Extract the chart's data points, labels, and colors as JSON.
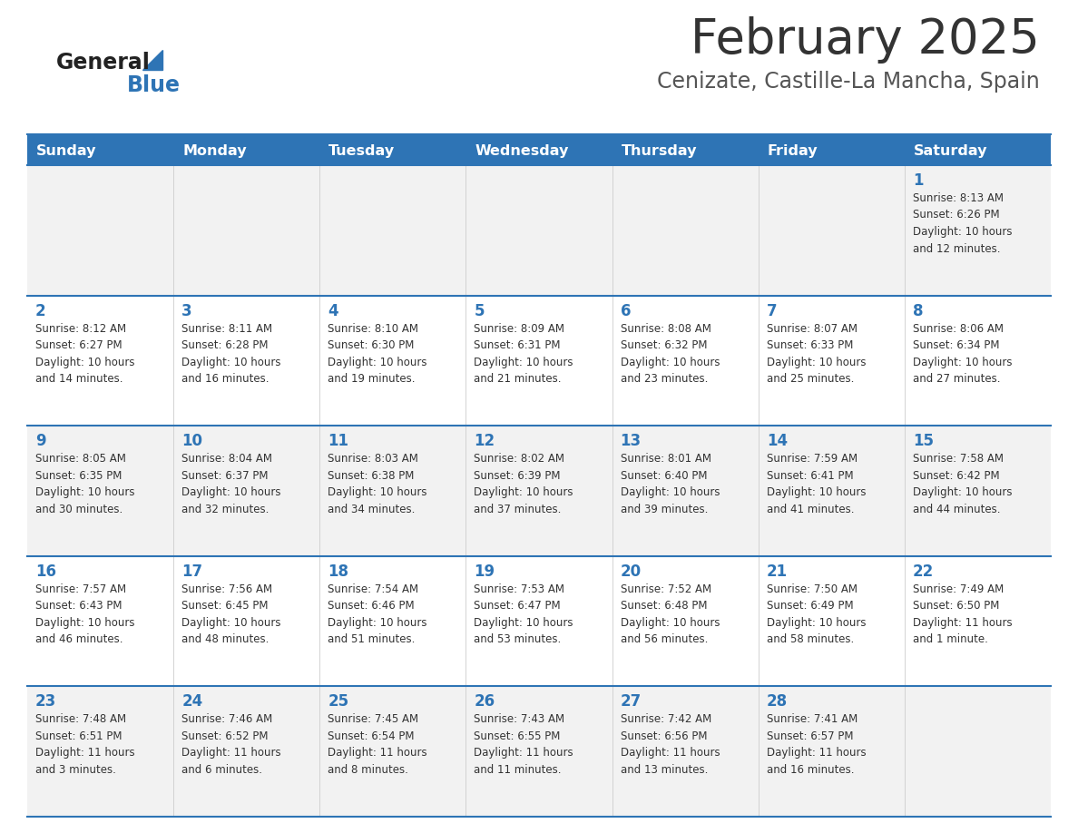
{
  "title": "February 2025",
  "subtitle": "Cenizate, Castille-La Mancha, Spain",
  "days_of_week": [
    "Sunday",
    "Monday",
    "Tuesday",
    "Wednesday",
    "Thursday",
    "Friday",
    "Saturday"
  ],
  "header_bg": "#2E74B5",
  "header_text": "#FFFFFF",
  "row_bg_odd": "#F2F2F2",
  "row_bg_even": "#FFFFFF",
  "cell_text_color": "#333333",
  "day_num_color": "#2E74B5",
  "border_color": "#2E74B5",
  "title_color": "#333333",
  "subtitle_color": "#555555",
  "logo_general_color": "#222222",
  "logo_blue_color": "#2E74B5",
  "logo_triangle_color": "#2E74B5",
  "calendar_data": [
    [
      {
        "day": null,
        "info": null
      },
      {
        "day": null,
        "info": null
      },
      {
        "day": null,
        "info": null
      },
      {
        "day": null,
        "info": null
      },
      {
        "day": null,
        "info": null
      },
      {
        "day": null,
        "info": null
      },
      {
        "day": 1,
        "info": "Sunrise: 8:13 AM\nSunset: 6:26 PM\nDaylight: 10 hours\nand 12 minutes."
      }
    ],
    [
      {
        "day": 2,
        "info": "Sunrise: 8:12 AM\nSunset: 6:27 PM\nDaylight: 10 hours\nand 14 minutes."
      },
      {
        "day": 3,
        "info": "Sunrise: 8:11 AM\nSunset: 6:28 PM\nDaylight: 10 hours\nand 16 minutes."
      },
      {
        "day": 4,
        "info": "Sunrise: 8:10 AM\nSunset: 6:30 PM\nDaylight: 10 hours\nand 19 minutes."
      },
      {
        "day": 5,
        "info": "Sunrise: 8:09 AM\nSunset: 6:31 PM\nDaylight: 10 hours\nand 21 minutes."
      },
      {
        "day": 6,
        "info": "Sunrise: 8:08 AM\nSunset: 6:32 PM\nDaylight: 10 hours\nand 23 minutes."
      },
      {
        "day": 7,
        "info": "Sunrise: 8:07 AM\nSunset: 6:33 PM\nDaylight: 10 hours\nand 25 minutes."
      },
      {
        "day": 8,
        "info": "Sunrise: 8:06 AM\nSunset: 6:34 PM\nDaylight: 10 hours\nand 27 minutes."
      }
    ],
    [
      {
        "day": 9,
        "info": "Sunrise: 8:05 AM\nSunset: 6:35 PM\nDaylight: 10 hours\nand 30 minutes."
      },
      {
        "day": 10,
        "info": "Sunrise: 8:04 AM\nSunset: 6:37 PM\nDaylight: 10 hours\nand 32 minutes."
      },
      {
        "day": 11,
        "info": "Sunrise: 8:03 AM\nSunset: 6:38 PM\nDaylight: 10 hours\nand 34 minutes."
      },
      {
        "day": 12,
        "info": "Sunrise: 8:02 AM\nSunset: 6:39 PM\nDaylight: 10 hours\nand 37 minutes."
      },
      {
        "day": 13,
        "info": "Sunrise: 8:01 AM\nSunset: 6:40 PM\nDaylight: 10 hours\nand 39 minutes."
      },
      {
        "day": 14,
        "info": "Sunrise: 7:59 AM\nSunset: 6:41 PM\nDaylight: 10 hours\nand 41 minutes."
      },
      {
        "day": 15,
        "info": "Sunrise: 7:58 AM\nSunset: 6:42 PM\nDaylight: 10 hours\nand 44 minutes."
      }
    ],
    [
      {
        "day": 16,
        "info": "Sunrise: 7:57 AM\nSunset: 6:43 PM\nDaylight: 10 hours\nand 46 minutes."
      },
      {
        "day": 17,
        "info": "Sunrise: 7:56 AM\nSunset: 6:45 PM\nDaylight: 10 hours\nand 48 minutes."
      },
      {
        "day": 18,
        "info": "Sunrise: 7:54 AM\nSunset: 6:46 PM\nDaylight: 10 hours\nand 51 minutes."
      },
      {
        "day": 19,
        "info": "Sunrise: 7:53 AM\nSunset: 6:47 PM\nDaylight: 10 hours\nand 53 minutes."
      },
      {
        "day": 20,
        "info": "Sunrise: 7:52 AM\nSunset: 6:48 PM\nDaylight: 10 hours\nand 56 minutes."
      },
      {
        "day": 21,
        "info": "Sunrise: 7:50 AM\nSunset: 6:49 PM\nDaylight: 10 hours\nand 58 minutes."
      },
      {
        "day": 22,
        "info": "Sunrise: 7:49 AM\nSunset: 6:50 PM\nDaylight: 11 hours\nand 1 minute."
      }
    ],
    [
      {
        "day": 23,
        "info": "Sunrise: 7:48 AM\nSunset: 6:51 PM\nDaylight: 11 hours\nand 3 minutes."
      },
      {
        "day": 24,
        "info": "Sunrise: 7:46 AM\nSunset: 6:52 PM\nDaylight: 11 hours\nand 6 minutes."
      },
      {
        "day": 25,
        "info": "Sunrise: 7:45 AM\nSunset: 6:54 PM\nDaylight: 11 hours\nand 8 minutes."
      },
      {
        "day": 26,
        "info": "Sunrise: 7:43 AM\nSunset: 6:55 PM\nDaylight: 11 hours\nand 11 minutes."
      },
      {
        "day": 27,
        "info": "Sunrise: 7:42 AM\nSunset: 6:56 PM\nDaylight: 11 hours\nand 13 minutes."
      },
      {
        "day": 28,
        "info": "Sunrise: 7:41 AM\nSunset: 6:57 PM\nDaylight: 11 hours\nand 16 minutes."
      },
      {
        "day": null,
        "info": null
      }
    ]
  ]
}
